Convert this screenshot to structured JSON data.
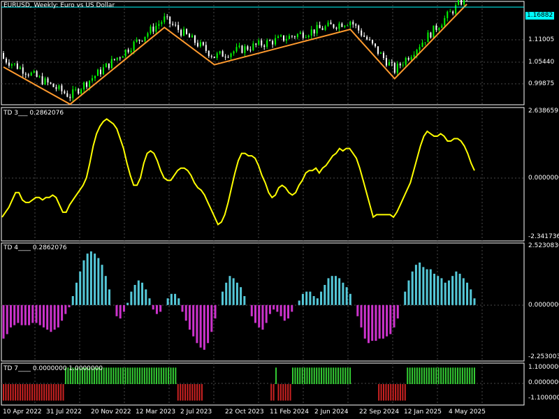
{
  "colors": {
    "background": "#000000",
    "frame": "#ffffff",
    "grid": "#4a4a4a",
    "bull": "#00ff00",
    "bear": "#ffffff",
    "zigzag": "#ff9a2e",
    "price_line": "#00ffff",
    "td3_line": "#ffff00",
    "td4_pos": "#55c8d8",
    "td4_neg": "#cc33cc",
    "td7_pos": "#33cc33",
    "td7_neg": "#cc2222"
  },
  "main": {
    "title": "EURUSD, Weekly:  Euro vs US Dollar",
    "price_label": "1.16882",
    "y_labels": [
      "1.11005",
      "1.05440",
      "0.99875"
    ]
  },
  "td3": {
    "label": "TD 3___  0.2862076",
    "y_labels": [
      "2.6386591",
      "0.0000000",
      "-2.3417365"
    ]
  },
  "td4": {
    "label": "TD 4____  0.2862076",
    "y_labels": [
      "2.5230836",
      "0.0000000",
      "-2.2530038"
    ]
  },
  "td7": {
    "label": "TD 7____  0.0000000  1.0000000",
    "y_labels": [
      "1.1000000",
      "0.0000000",
      "-1.1000000"
    ]
  },
  "x_labels": [
    "10 Apr 2022",
    "31 Jul 2022",
    "20 Nov 2022",
    "12 Mar 2023",
    "2 Jul 2023",
    "22 Oct 2023",
    "11 Feb 2024",
    "2 Jun 2024",
    "22 Sep 2024",
    "12 Jan 2025",
    "4 May 2025"
  ],
  "chart_data": [
    {
      "type": "candlestick",
      "title": "EURUSD, Weekly:  Euro vs US Dollar",
      "ylim": [
        0.965,
        1.175
      ],
      "zigzag_points": [
        {
          "bar": 0,
          "price": 1.04
        },
        {
          "bar": 24,
          "price": 0.96
        },
        {
          "bar": 58,
          "price": 1.125
        },
        {
          "bar": 76,
          "price": 1.045
        },
        {
          "bar": 125,
          "price": 1.121
        },
        {
          "bar": 141,
          "price": 1.015
        },
        {
          "bar": 167,
          "price": 1.175
        }
      ],
      "last_price": 1.16882
    },
    {
      "type": "line",
      "name": "TD 3",
      "ylim": [
        -2.3417365,
        2.6386591
      ],
      "values": [
        -1.6,
        -1.4,
        -1.2,
        -0.9,
        -0.6,
        -0.6,
        -0.9,
        -1.0,
        -1.0,
        -0.9,
        -0.8,
        -0.8,
        -0.9,
        -0.8,
        -0.8,
        -0.7,
        -0.8,
        -1.1,
        -1.4,
        -1.4,
        -1.1,
        -0.9,
        -0.7,
        -0.5,
        -0.3,
        0.0,
        0.6,
        1.3,
        1.8,
        2.1,
        2.3,
        2.4,
        2.3,
        2.2,
        2.0,
        1.6,
        1.2,
        0.6,
        0.1,
        -0.3,
        -0.3,
        0.0,
        0.6,
        1.0,
        1.1,
        1.0,
        0.7,
        0.3,
        0.0,
        -0.1,
        -0.1,
        0.1,
        0.3,
        0.4,
        0.4,
        0.3,
        0.1,
        -0.2,
        -0.4,
        -0.5,
        -0.7,
        -1.0,
        -1.3,
        -1.6,
        -1.9,
        -1.8,
        -1.5,
        -1.0,
        -0.4,
        0.2,
        0.7,
        1.0,
        1.0,
        0.9,
        0.9,
        0.8,
        0.5,
        0.1,
        -0.2,
        -0.6,
        -0.8,
        -0.7,
        -0.4,
        -0.3,
        -0.4,
        -0.6,
        -0.7,
        -0.6,
        -0.3,
        -0.1,
        0.2,
        0.3,
        0.3,
        0.4,
        0.2,
        0.4,
        0.5,
        0.7,
        0.9,
        1.0,
        1.2,
        1.1,
        1.2,
        1.2,
        1.0,
        0.8,
        0.4,
        -0.1,
        -0.6,
        -1.1,
        -1.6,
        -1.5,
        -1.5,
        -1.5,
        -1.5,
        -1.5,
        -1.6,
        -1.4,
        -1.1,
        -0.8,
        -0.5,
        -0.2,
        0.3,
        0.8,
        1.3,
        1.7,
        1.9,
        1.8,
        1.7,
        1.7,
        1.8,
        1.7,
        1.5,
        1.5,
        1.6,
        1.6,
        1.5,
        1.3,
        1.0,
        0.6,
        0.3
      ],
      "zero_line": 0.0
    },
    {
      "type": "histogram",
      "name": "TD 4",
      "ylim": [
        -2.2530038,
        2.5230836
      ],
      "values": [
        -1.5,
        -1.3,
        -1.0,
        -0.9,
        -0.8,
        -0.9,
        -0.9,
        -0.9,
        -0.8,
        -0.8,
        -0.9,
        -1.0,
        -1.1,
        -1.2,
        -1.1,
        -1.0,
        -0.7,
        -0.4,
        -0.1,
        0.4,
        1.0,
        1.5,
        2.0,
        2.3,
        2.4,
        2.3,
        2.1,
        1.8,
        1.3,
        0.7,
        0.0,
        -0.5,
        -0.6,
        -0.3,
        0.1,
        0.6,
        0.9,
        1.1,
        1.0,
        0.7,
        0.3,
        -0.2,
        -0.4,
        -0.3,
        0.0,
        0.3,
        0.5,
        0.5,
        0.3,
        -0.3,
        -0.7,
        -1.1,
        -1.4,
        -1.7,
        -1.9,
        -2.0,
        -1.7,
        -1.2,
        -0.6,
        0.0,
        0.6,
        1.0,
        1.3,
        1.2,
        1.0,
        0.8,
        0.4,
        0.0,
        -0.5,
        -0.8,
        -1.0,
        -1.1,
        -0.8,
        -0.4,
        -0.2,
        -0.3,
        -0.5,
        -0.7,
        -0.6,
        -0.3,
        0.0,
        0.2,
        0.5,
        0.6,
        0.6,
        0.4,
        0.3,
        0.6,
        0.9,
        1.2,
        1.3,
        1.3,
        1.2,
        1.0,
        0.8,
        0.5,
        0.0,
        -0.5,
        -1.0,
        -1.5,
        -1.7,
        -1.6,
        -1.6,
        -1.5,
        -1.5,
        -1.4,
        -1.3,
        -1.0,
        -0.6,
        0.0,
        0.6,
        1.1,
        1.5,
        1.8,
        1.9,
        1.7,
        1.6,
        1.6,
        1.4,
        1.3,
        1.2,
        1.0,
        1.1,
        1.3,
        1.5,
        1.4,
        1.2,
        1.0,
        0.7,
        0.3
      ]
    },
    {
      "type": "histogram",
      "name": "TD 7",
      "ylim": [
        -1.1,
        1.1
      ],
      "values": [
        -1,
        -1,
        -1,
        -1,
        -1,
        -1,
        -1,
        -1,
        -1,
        -1,
        -1,
        -1,
        -1,
        -1,
        -1,
        -1,
        -1,
        -1,
        -1,
        -1,
        -1,
        -1,
        -1,
        -1,
        -1,
        -1,
        1,
        1,
        1,
        1,
        1,
        1,
        1,
        1,
        1,
        1,
        1,
        1,
        1,
        1,
        1,
        1,
        1,
        1,
        1,
        1,
        1,
        1,
        1,
        1,
        1,
        1,
        1,
        1,
        1,
        1,
        1,
        1,
        1,
        1,
        1,
        1,
        1,
        1,
        1,
        1,
        1,
        1,
        1,
        1,
        1,
        1,
        1,
        -1,
        -1,
        -1,
        -1,
        -1,
        -1,
        -1,
        -1,
        -1,
        -1,
        -1,
        0,
        0,
        0,
        0,
        0,
        0,
        0,
        0,
        0,
        0,
        0,
        0,
        0,
        0,
        0,
        0,
        0,
        0,
        0,
        0,
        0,
        0,
        0,
        0,
        0,
        0,
        0,
        0,
        -1,
        -1,
        1,
        -1,
        -1,
        -1,
        -1,
        -1,
        -1,
        1,
        1,
        1,
        1,
        1,
        1,
        1,
        1,
        1,
        1,
        1,
        1,
        1,
        1,
        1,
        1,
        1,
        1,
        1,
        1,
        1,
        1,
        1,
        1,
        1,
        0,
        0,
        0,
        0,
        0,
        0,
        0,
        0,
        0,
        0,
        0,
        -1,
        -1,
        -1,
        -1,
        -1,
        -1,
        -1,
        -1,
        -1,
        -1,
        -1,
        -1,
        1,
        1,
        1,
        1,
        1,
        1,
        1,
        1,
        1,
        1,
        1,
        1,
        1,
        1,
        1,
        1,
        1,
        1,
        1,
        1,
        1,
        1,
        1,
        1,
        1,
        1,
        1,
        1,
        1
      ]
    }
  ]
}
